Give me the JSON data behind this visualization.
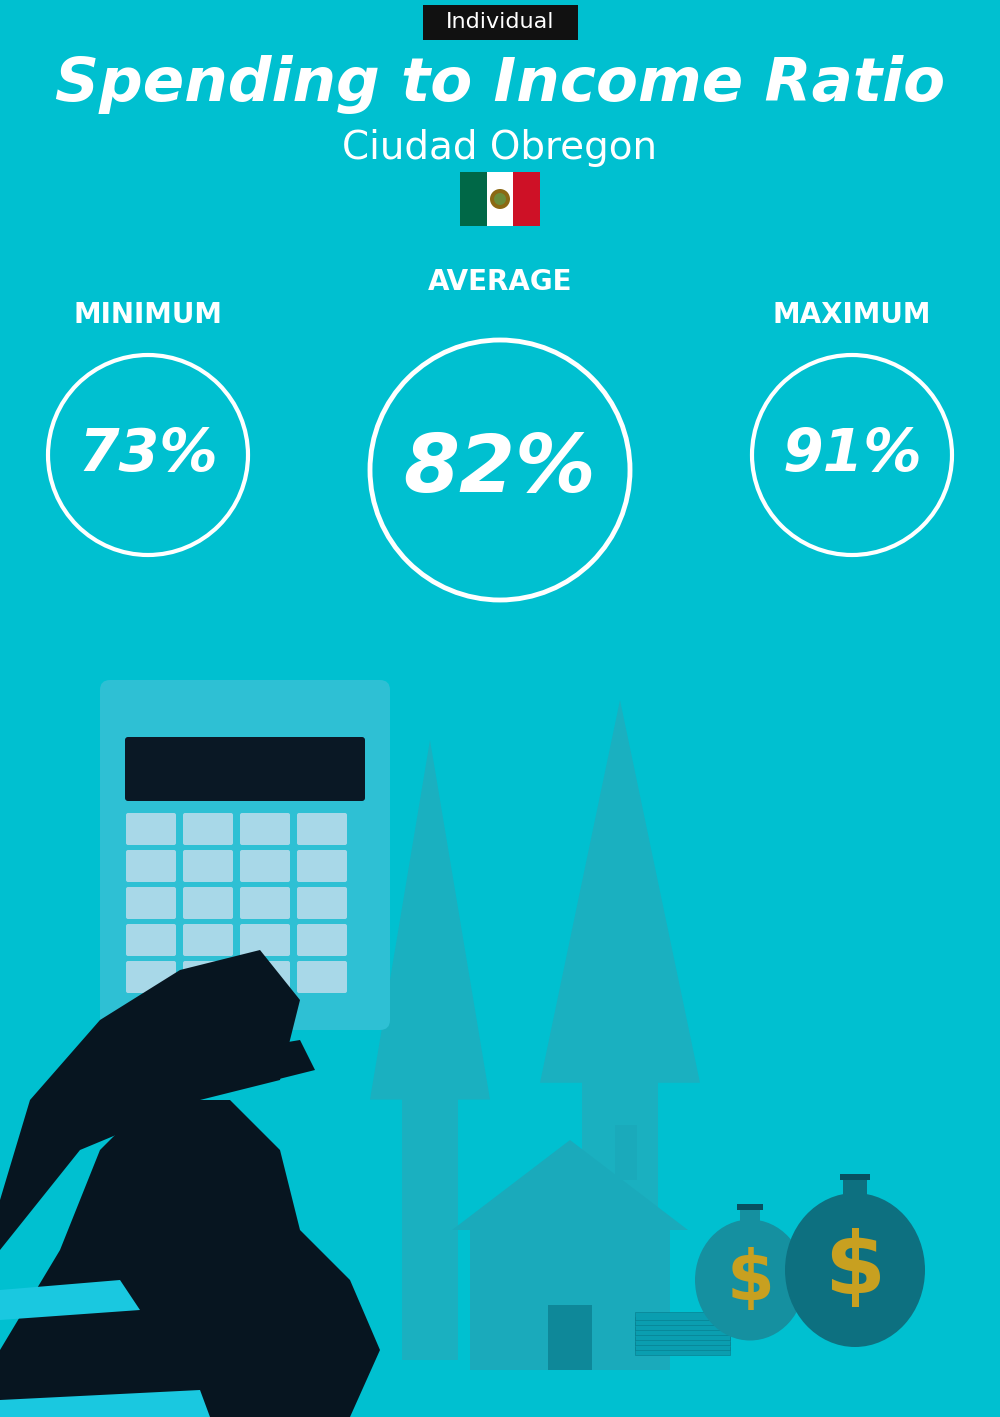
{
  "title": "Spending to Income Ratio",
  "subtitle": "Ciudad Obregon",
  "tag_label": "Individual",
  "bg_color": "#00C0D0",
  "tag_bg_color": "#111111",
  "tag_text_color": "#ffffff",
  "text_color": "#ffffff",
  "circle_color": "#ffffff",
  "min_label": "MINIMUM",
  "avg_label": "AVERAGE",
  "max_label": "MAXIMUM",
  "min_value": "73%",
  "avg_value": "82%",
  "max_value": "91%",
  "title_fontsize": 44,
  "subtitle_fontsize": 28,
  "tag_fontsize": 16,
  "label_fontsize": 20,
  "min_value_fontsize": 42,
  "avg_value_fontsize": 58,
  "max_value_fontsize": 42,
  "fig_width": 10.0,
  "fig_height": 14.17,
  "arrow_color": "#1AB0C0",
  "house_color": "#1AAABB",
  "house_dark": "#0E8899",
  "calc_body_color": "#2EC0D4",
  "calc_screen_color": "#0A1825",
  "calc_btn_color": "#A8D8E8",
  "suit_color": "#071520",
  "sleeve_color": "#1AC8E0",
  "bag_color1": "#1590A0",
  "bag_color2": "#0E7A8A",
  "money_color": "#0A9EB0",
  "stack_color": "#0A9EB0",
  "flag_green": "#006847",
  "flag_white": "#ffffff",
  "flag_red": "#CE1126",
  "flag_center": "#8B6914"
}
